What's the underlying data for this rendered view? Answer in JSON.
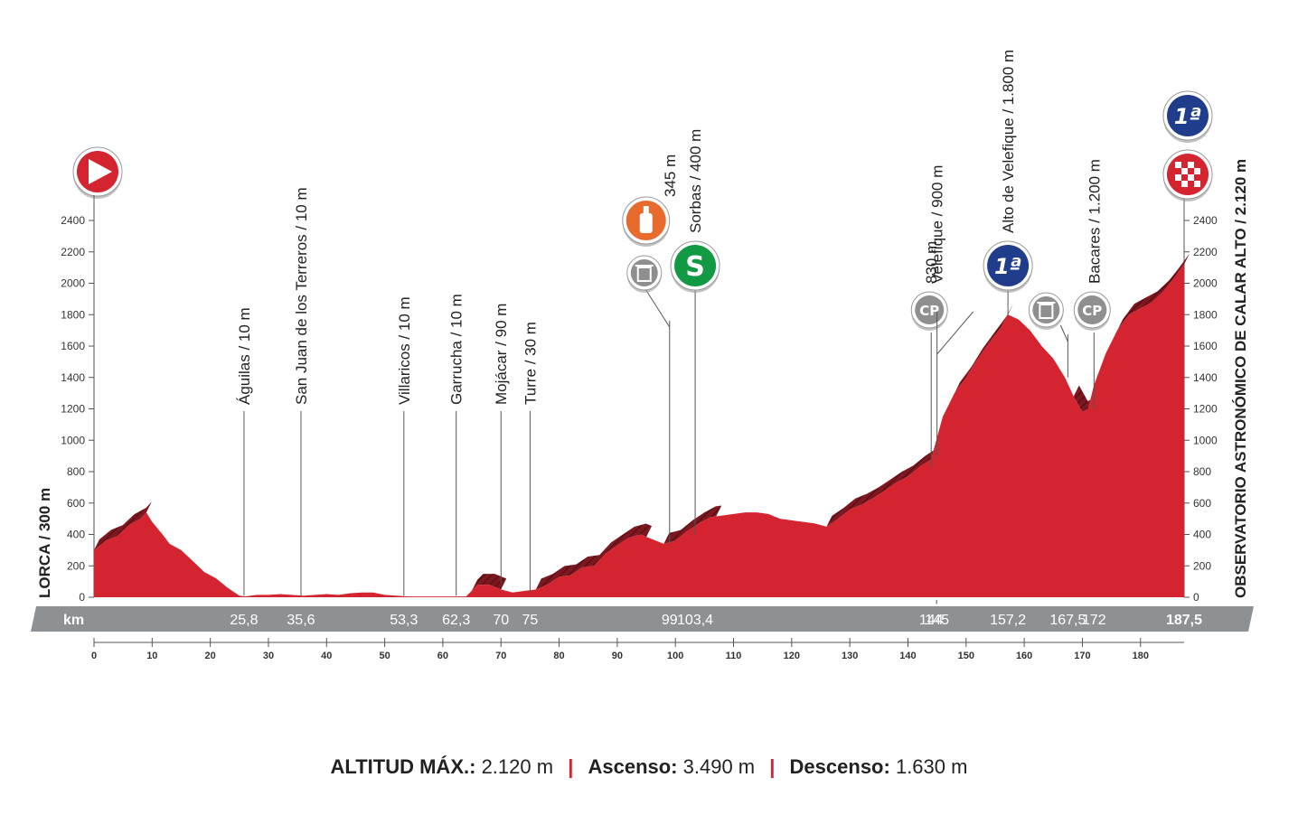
{
  "summary": {
    "max_alt_label": "ALTITUD MÁX.:",
    "max_alt_value": "2.120 m",
    "ascent_label": "Ascenso:",
    "ascent_value": "3.490 m",
    "descent_label": "Descenso:",
    "descent_value": "1.630 m"
  },
  "chart_data": {
    "type": "area",
    "xlim": [
      0,
      187.5
    ],
    "ylim": [
      0,
      2400
    ],
    "x_ticks": [
      0,
      10,
      20,
      30,
      40,
      50,
      60,
      70,
      80,
      90,
      100,
      110,
      120,
      130,
      140,
      150,
      160,
      170,
      180
    ],
    "y_ticks": [
      0,
      200,
      400,
      600,
      800,
      1000,
      1200,
      1400,
      1600,
      1800,
      2000,
      2200,
      2400
    ],
    "km_band_label": "km",
    "start_label": "LORCA / 300 m",
    "finish_label": "OBSERVATORIO ASTRONÓMICO DE CALAR ALTO / 2.120 m",
    "profile": [
      [
        0,
        300
      ],
      [
        2,
        360
      ],
      [
        4,
        390
      ],
      [
        6,
        460
      ],
      [
        8,
        500
      ],
      [
        9,
        540
      ],
      [
        10,
        480
      ],
      [
        12,
        390
      ],
      [
        13,
        340
      ],
      [
        15,
        300
      ],
      [
        17,
        230
      ],
      [
        19,
        160
      ],
      [
        21,
        120
      ],
      [
        23,
        60
      ],
      [
        25,
        10
      ],
      [
        26,
        5
      ],
      [
        28,
        15
      ],
      [
        30,
        15
      ],
      [
        32,
        20
      ],
      [
        34,
        15
      ],
      [
        36,
        10
      ],
      [
        38,
        15
      ],
      [
        40,
        20
      ],
      [
        42,
        15
      ],
      [
        44,
        25
      ],
      [
        46,
        30
      ],
      [
        48,
        30
      ],
      [
        50,
        15
      ],
      [
        52,
        10
      ],
      [
        54,
        5
      ],
      [
        60,
        5
      ],
      [
        62,
        5
      ],
      [
        64,
        5
      ],
      [
        66,
        80
      ],
      [
        68,
        80
      ],
      [
        70,
        50
      ],
      [
        72,
        30
      ],
      [
        74,
        40
      ],
      [
        76,
        50
      ],
      [
        78,
        80
      ],
      [
        80,
        130
      ],
      [
        82,
        140
      ],
      [
        84,
        190
      ],
      [
        86,
        200
      ],
      [
        88,
        280
      ],
      [
        90,
        330
      ],
      [
        92,
        380
      ],
      [
        94,
        400
      ],
      [
        96,
        370
      ],
      [
        98,
        340
      ],
      [
        100,
        360
      ],
      [
        102,
        420
      ],
      [
        104,
        470
      ],
      [
        106,
        510
      ],
      [
        108,
        520
      ],
      [
        110,
        530
      ],
      [
        112,
        540
      ],
      [
        114,
        540
      ],
      [
        116,
        530
      ],
      [
        118,
        500
      ],
      [
        120,
        490
      ],
      [
        122,
        480
      ],
      [
        124,
        470
      ],
      [
        126,
        450
      ],
      [
        128,
        500
      ],
      [
        130,
        560
      ],
      [
        132,
        590
      ],
      [
        134,
        630
      ],
      [
        136,
        680
      ],
      [
        138,
        730
      ],
      [
        140,
        770
      ],
      [
        142,
        830
      ],
      [
        144,
        880
      ],
      [
        146,
        1150
      ],
      [
        148,
        1300
      ],
      [
        150,
        1400
      ],
      [
        152,
        1520
      ],
      [
        154,
        1620
      ],
      [
        156,
        1720
      ],
      [
        157.2,
        1800
      ],
      [
        159,
        1770
      ],
      [
        161,
        1700
      ],
      [
        163,
        1600
      ],
      [
        165,
        1520
      ],
      [
        167,
        1400
      ],
      [
        168.5,
        1280
      ],
      [
        170,
        1180
      ],
      [
        171,
        1200
      ],
      [
        172,
        1350
      ],
      [
        174,
        1550
      ],
      [
        176,
        1700
      ],
      [
        178,
        1800
      ],
      [
        180,
        1840
      ],
      [
        182,
        1880
      ],
      [
        184,
        1950
      ],
      [
        185.5,
        2020
      ],
      [
        187.5,
        2120
      ]
    ],
    "climb_segments": [
      [
        0,
        9
      ],
      [
        65,
        70
      ],
      [
        76,
        95
      ],
      [
        98,
        107
      ],
      [
        126,
        157.2
      ],
      [
        168.5,
        187.5
      ]
    ],
    "markers": [
      {
        "km": 25.8,
        "km_label": "25,8",
        "name": "Águilas / 10 m",
        "alt": 10,
        "symbol": ""
      },
      {
        "km": 35.6,
        "km_label": "35,6",
        "name": "San Juan de los Terreros / 10 m",
        "alt": 10,
        "symbol": ""
      },
      {
        "km": 53.3,
        "km_label": "53,3",
        "name": "Villaricos / 10 m",
        "alt": 10,
        "symbol": ""
      },
      {
        "km": 62.3,
        "km_label": "62,3",
        "name": "Garrucha / 10 m",
        "alt": 10,
        "symbol": ""
      },
      {
        "km": 70,
        "km_label": "70",
        "name": "Mojácar / 90 m",
        "alt": 90,
        "symbol": ""
      },
      {
        "km": 75,
        "km_label": "75",
        "name": "Turre / 30 m",
        "alt": 30,
        "symbol": ""
      },
      {
        "km": 99,
        "km_label": "99",
        "name": "345 m",
        "alt": 345,
        "symbol": "feed"
      },
      {
        "km": 103.4,
        "km_label": "103,4",
        "name": "Sorbas / 400 m",
        "alt": 400,
        "symbol": "sprint"
      },
      {
        "km": 144,
        "km_label": "144",
        "name": "830 m",
        "alt": 830,
        "symbol": "cp"
      },
      {
        "km": 145,
        "km_label": "145",
        "name": "Velefique / 900 m",
        "alt": 900,
        "symbol": ""
      },
      {
        "km": 157.2,
        "km_label": "157,2",
        "name": "Alto de Velefique / 1.800 m",
        "alt": 1800,
        "symbol": "kom1"
      },
      {
        "km": 167.5,
        "km_label": "167,5",
        "name": "",
        "alt": 1400,
        "symbol": "bin"
      },
      {
        "km": 172,
        "km_label": "172",
        "name": "Bacares / 1.200 m",
        "alt": 1200,
        "symbol": "cp"
      },
      {
        "km": 187.5,
        "km_label": "187,5",
        "name": "",
        "alt": 2120,
        "symbol": "finish"
      }
    ],
    "kom_label": "1ª",
    "sprint_label": "S",
    "colors": {
      "profile": "#d4242f",
      "climb": "#8a1b22",
      "band": "#8e9194",
      "text": "#222222"
    }
  }
}
